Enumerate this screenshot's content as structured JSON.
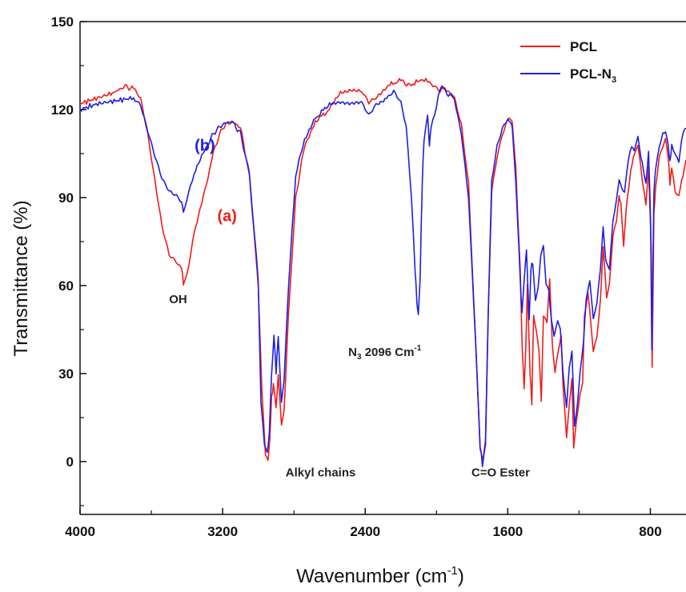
{
  "chart_data": {
    "type": "line",
    "title": "",
    "xlabel": {
      "main": "Wavenumber (cm",
      "sup": "-1",
      "close": ")"
    },
    "ylabel": "Transmittance (%)",
    "xlim": [
      4000,
      600
    ],
    "ylim": [
      -18,
      150
    ],
    "x_ticks": [
      "4000",
      "3200",
      "2400",
      "1600",
      "800"
    ],
    "y_ticks": [
      "0",
      "30",
      "60",
      "90",
      "120",
      "150"
    ],
    "legend": {
      "position": "top-right",
      "items": [
        {
          "name": "PCL",
          "color": "#ee1c1c"
        },
        {
          "name": "PCL-N",
          "sub": "3",
          "color": "#1f1fe0"
        }
      ]
    },
    "series": [
      {
        "name": "PCL",
        "color": "#ee1c1c",
        "points": [
          [
            4000,
            122
          ],
          [
            3900,
            124
          ],
          [
            3800,
            126
          ],
          [
            3750,
            128
          ],
          [
            3700,
            127
          ],
          [
            3660,
            124
          ],
          [
            3620,
            112
          ],
          [
            3580,
            96
          ],
          [
            3540,
            80
          ],
          [
            3500,
            70
          ],
          [
            3460,
            68
          ],
          [
            3430,
            66
          ],
          [
            3420,
            61
          ],
          [
            3400,
            64
          ],
          [
            3360,
            78
          ],
          [
            3300,
            92
          ],
          [
            3250,
            106
          ],
          [
            3200,
            114
          ],
          [
            3150,
            116
          ],
          [
            3100,
            114
          ],
          [
            3050,
            98
          ],
          [
            3000,
            60
          ],
          [
            2980,
            25
          ],
          [
            2960,
            3
          ],
          [
            2945,
            0
          ],
          [
            2935,
            8
          ],
          [
            2925,
            22
          ],
          [
            2915,
            26
          ],
          [
            2900,
            18
          ],
          [
            2888,
            30
          ],
          [
            2870,
            12
          ],
          [
            2855,
            18
          ],
          [
            2830,
            50
          ],
          [
            2790,
            90
          ],
          [
            2740,
            108
          ],
          [
            2680,
            116
          ],
          [
            2600,
            120
          ],
          [
            2540,
            126
          ],
          [
            2480,
            127
          ],
          [
            2420,
            126
          ],
          [
            2380,
            122
          ],
          [
            2340,
            124
          ],
          [
            2280,
            128
          ],
          [
            2200,
            130
          ],
          [
            2150,
            128
          ],
          [
            2096,
            130
          ],
          [
            2050,
            130
          ],
          [
            2010,
            128
          ],
          [
            1980,
            126
          ],
          [
            1960,
            127
          ],
          [
            1900,
            124
          ],
          [
            1860,
            115
          ],
          [
            1820,
            95
          ],
          [
            1780,
            40
          ],
          [
            1755,
            5
          ],
          [
            1740,
            0
          ],
          [
            1725,
            8
          ],
          [
            1710,
            50
          ],
          [
            1690,
            92
          ],
          [
            1660,
            104
          ],
          [
            1630,
            112
          ],
          [
            1600,
            117
          ],
          [
            1575,
            116
          ],
          [
            1555,
            100
          ],
          [
            1530,
            65
          ],
          [
            1520,
            40
          ],
          [
            1508,
            25
          ],
          [
            1500,
            36
          ],
          [
            1490,
            60
          ],
          [
            1475,
            30
          ],
          [
            1465,
            20
          ],
          [
            1455,
            50
          ],
          [
            1440,
            45
          ],
          [
            1425,
            38
          ],
          [
            1412,
            20
          ],
          [
            1400,
            50
          ],
          [
            1380,
            48
          ],
          [
            1365,
            62
          ],
          [
            1350,
            40
          ],
          [
            1335,
            30
          ],
          [
            1320,
            36
          ],
          [
            1300,
            43
          ],
          [
            1290,
            25
          ],
          [
            1270,
            8
          ],
          [
            1255,
            20
          ],
          [
            1240,
            28
          ],
          [
            1230,
            5
          ],
          [
            1215,
            14
          ],
          [
            1195,
            22
          ],
          [
            1180,
            27
          ],
          [
            1170,
            50
          ],
          [
            1150,
            58
          ],
          [
            1120,
            38
          ],
          [
            1100,
            42
          ],
          [
            1080,
            55
          ],
          [
            1065,
            74
          ],
          [
            1045,
            56
          ],
          [
            1030,
            60
          ],
          [
            1010,
            77
          ],
          [
            990,
            82
          ],
          [
            975,
            90
          ],
          [
            965,
            88
          ],
          [
            950,
            74
          ],
          [
            935,
            86
          ],
          [
            910,
            100
          ],
          [
            895,
            104
          ],
          [
            870,
            108
          ],
          [
            845,
            96
          ],
          [
            825,
            88
          ],
          [
            810,
            100
          ],
          [
            795,
            72
          ],
          [
            790,
            32
          ],
          [
            780,
            84
          ],
          [
            770,
            94
          ],
          [
            750,
            104
          ],
          [
            730,
            108
          ],
          [
            715,
            110
          ],
          [
            700,
            104
          ],
          [
            690,
            95
          ],
          [
            680,
            100
          ],
          [
            660,
            92
          ],
          [
            640,
            90
          ],
          [
            625,
            96
          ],
          [
            600,
            102
          ]
        ]
      },
      {
        "name": "PCL-N3",
        "color": "#1f1fe0",
        "points": [
          [
            4000,
            120
          ],
          [
            3900,
            122
          ],
          [
            3800,
            123
          ],
          [
            3700,
            124
          ],
          [
            3660,
            122
          ],
          [
            3620,
            113
          ],
          [
            3580,
            104
          ],
          [
            3540,
            96
          ],
          [
            3500,
            92
          ],
          [
            3460,
            91
          ],
          [
            3430,
            89
          ],
          [
            3420,
            85
          ],
          [
            3400,
            90
          ],
          [
            3360,
            98
          ],
          [
            3300,
            106
          ],
          [
            3250,
            112
          ],
          [
            3200,
            115
          ],
          [
            3150,
            116
          ],
          [
            3100,
            112
          ],
          [
            3050,
            98
          ],
          [
            3000,
            62
          ],
          [
            2985,
            20
          ],
          [
            2965,
            5
          ],
          [
            2950,
            3
          ],
          [
            2938,
            10
          ],
          [
            2925,
            30
          ],
          [
            2912,
            43
          ],
          [
            2900,
            30
          ],
          [
            2888,
            43
          ],
          [
            2870,
            20
          ],
          [
            2855,
            28
          ],
          [
            2830,
            60
          ],
          [
            2790,
            98
          ],
          [
            2740,
            110
          ],
          [
            2680,
            117
          ],
          [
            2600,
            122
          ],
          [
            2540,
            123
          ],
          [
            2480,
            122
          ],
          [
            2420,
            122
          ],
          [
            2380,
            118
          ],
          [
            2340,
            122
          ],
          [
            2280,
            124
          ],
          [
            2240,
            126
          ],
          [
            2200,
            122
          ],
          [
            2170,
            114
          ],
          [
            2140,
            90
          ],
          [
            2120,
            65
          ],
          [
            2110,
            55
          ],
          [
            2102,
            50
          ],
          [
            2092,
            62
          ],
          [
            2080,
            95
          ],
          [
            2070,
            110
          ],
          [
            2050,
            118
          ],
          [
            2040,
            108
          ],
          [
            2030,
            114
          ],
          [
            2010,
            118
          ],
          [
            1990,
            124
          ],
          [
            1970,
            128
          ],
          [
            1950,
            126
          ],
          [
            1900,
            124
          ],
          [
            1860,
            112
          ],
          [
            1820,
            90
          ],
          [
            1780,
            40
          ],
          [
            1755,
            5
          ],
          [
            1742,
            -1
          ],
          [
            1725,
            6
          ],
          [
            1710,
            50
          ],
          [
            1690,
            96
          ],
          [
            1660,
            108
          ],
          [
            1630,
            114
          ],
          [
            1600,
            117
          ],
          [
            1575,
            114
          ],
          [
            1555,
            96
          ],
          [
            1530,
            62
          ],
          [
            1520,
            50
          ],
          [
            1508,
            62
          ],
          [
            1495,
            72
          ],
          [
            1480,
            48
          ],
          [
            1470,
            66
          ],
          [
            1460,
            68
          ],
          [
            1445,
            55
          ],
          [
            1430,
            60
          ],
          [
            1415,
            70
          ],
          [
            1400,
            74
          ],
          [
            1385,
            60
          ],
          [
            1370,
            58
          ],
          [
            1355,
            48
          ],
          [
            1340,
            42
          ],
          [
            1320,
            48
          ],
          [
            1305,
            46
          ],
          [
            1290,
            30
          ],
          [
            1270,
            18
          ],
          [
            1255,
            32
          ],
          [
            1240,
            38
          ],
          [
            1225,
            12
          ],
          [
            1210,
            20
          ],
          [
            1195,
            30
          ],
          [
            1175,
            40
          ],
          [
            1160,
            55
          ],
          [
            1140,
            62
          ],
          [
            1120,
            48
          ],
          [
            1100,
            54
          ],
          [
            1080,
            65
          ],
          [
            1065,
            80
          ],
          [
            1050,
            68
          ],
          [
            1030,
            66
          ],
          [
            1010,
            82
          ],
          [
            990,
            90
          ],
          [
            975,
            96
          ],
          [
            960,
            94
          ],
          [
            945,
            92
          ],
          [
            930,
            100
          ],
          [
            905,
            108
          ],
          [
            890,
            106
          ],
          [
            870,
            110
          ],
          [
            845,
            102
          ],
          [
            825,
            95
          ],
          [
            810,
            106
          ],
          [
            798,
            80
          ],
          [
            792,
            38
          ],
          [
            780,
            92
          ],
          [
            770,
            100
          ],
          [
            750,
            108
          ],
          [
            730,
            112
          ],
          [
            715,
            112
          ],
          [
            700,
            108
          ],
          [
            690,
            102
          ],
          [
            680,
            108
          ],
          [
            660,
            104
          ],
          [
            640,
            102
          ],
          [
            625,
            110
          ],
          [
            600,
            114
          ]
        ]
      }
    ],
    "annotations": [
      {
        "id": "oh",
        "text": "OH",
        "x": 3450,
        "y": 54
      },
      {
        "id": "alkyl",
        "text": "Alkyl chains",
        "x": 2650,
        "y": -5
      },
      {
        "id": "azide",
        "text": "N",
        "sub": "3",
        "rest": " 2096 Cm",
        "sup": "-1",
        "x": 2290,
        "y": 36
      },
      {
        "id": "ester",
        "text": "C=O Ester",
        "x": 1640,
        "y": -5
      },
      {
        "id": "label-a",
        "text": "(a)",
        "x": 3175,
        "y": 82,
        "color": "#ee1c1c"
      },
      {
        "id": "label-b",
        "text": "(b)",
        "x": 3300,
        "y": 106,
        "color": "#1f1fe0"
      }
    ]
  }
}
